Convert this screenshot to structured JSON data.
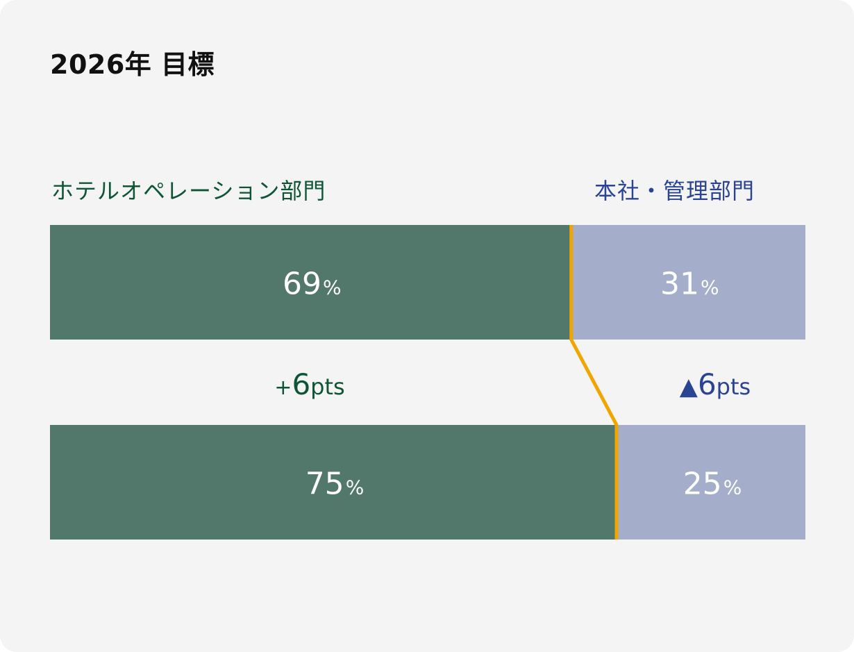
{
  "title": "2026年 目標",
  "categories": {
    "left_label": "ホテルオペレーション部門",
    "right_label": "本社・管理部門"
  },
  "colors": {
    "left_fill": "#51786b",
    "right_fill": "#a4adc9",
    "divider": "#f0a500",
    "left_text": "#0d5535",
    "right_text": "#2a4393",
    "value_text": "#ffffff"
  },
  "percent_sign": "%",
  "deltas": {
    "left": {
      "sign": "+",
      "value": "6",
      "unit": "pts"
    },
    "right": {
      "sign": "▲",
      "value": "6",
      "unit": "pts"
    }
  },
  "chart_data": {
    "type": "bar",
    "orientation": "horizontal",
    "stacked": true,
    "normalized": true,
    "title": "2026年 目標",
    "series": [
      {
        "name": "ホテルオペレーション部門",
        "values": [
          69,
          75
        ]
      },
      {
        "name": "本社・管理部門",
        "values": [
          31,
          25
        ]
      }
    ],
    "xlim": [
      0,
      100
    ],
    "grid": false,
    "legend": "top"
  }
}
